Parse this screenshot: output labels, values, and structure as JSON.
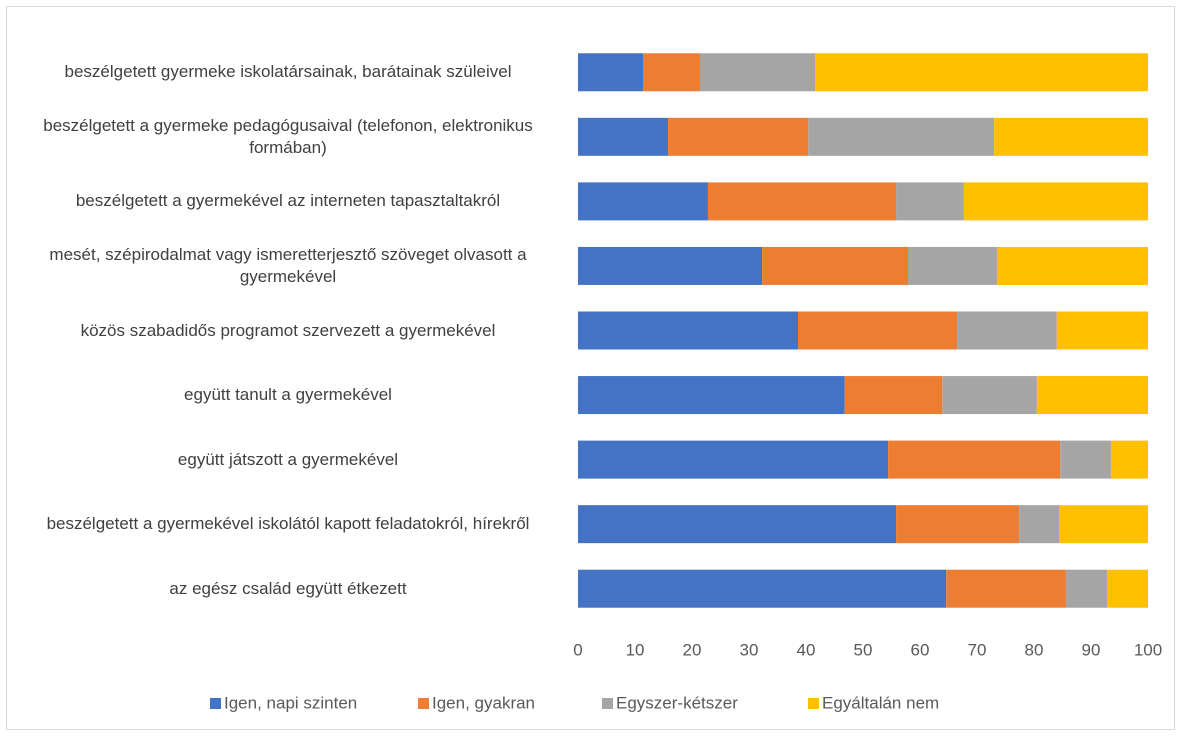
{
  "chart_data": {
    "type": "stacked_barh",
    "categories": [
      "beszélgetett gyermeke iskolatársainak, barátainak szüleivel",
      "beszélgetett a gyermeke pedagógusaival (telefonon, elektronikus formában)",
      "beszélgetett a gyermekével az interneten tapasztaltakról",
      "mesét, szépirodalmat vagy ismeretterjesztő szöveget olvasott a gyermekével",
      "közös szabadidős programot szervezett a gyermekével",
      "együtt tanult a gyermekével",
      "együtt játszott a gyermekével",
      "beszélgetett a gyermekével iskolától kapott feladatokról, hírekről",
      "az egész család együtt étkezett"
    ],
    "series": [
      {
        "name": "Igen, napi szinten",
        "color": "#4472c4",
        "values": [
          11.4,
          15.8,
          22.8,
          32.3,
          38.6,
          46.8,
          54.4,
          55.8,
          64.6
        ]
      },
      {
        "name": "Igen, gyakran",
        "color": "#ed7d31",
        "values": [
          10,
          24.6,
          33,
          25.6,
          27.9,
          17.1,
          30.2,
          21.6,
          21
        ]
      },
      {
        "name": "Egyszer-kétszer",
        "color": "#a5a5a5",
        "values": [
          20.2,
          32.6,
          11.9,
          15.6,
          17.5,
          16.6,
          8.9,
          7,
          7.2
        ]
      },
      {
        "name": "Egyáltalán nem",
        "color": "#ffc000",
        "values": [
          58.4,
          27,
          32.3,
          26.5,
          16,
          19.5,
          6.5,
          15.6,
          7.2
        ]
      }
    ],
    "xlim": [
      0,
      100
    ],
    "xticks": [
      0,
      10,
      20,
      30,
      40,
      50,
      60,
      70,
      80,
      90,
      100
    ],
    "legend": "bottom",
    "grid": false
  }
}
